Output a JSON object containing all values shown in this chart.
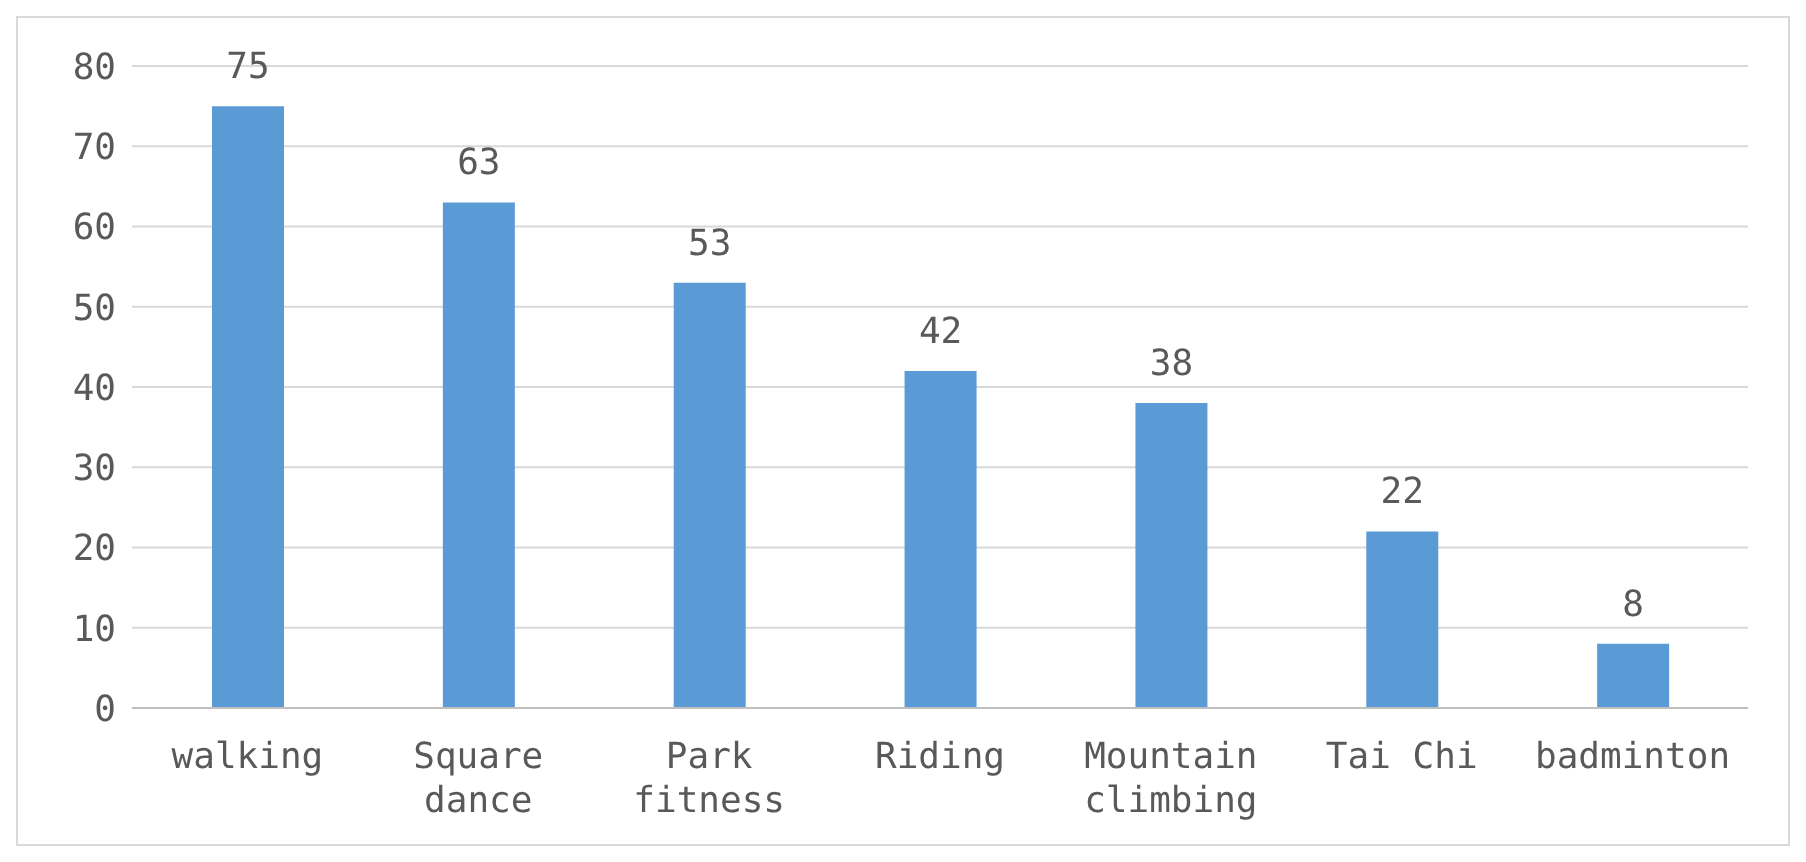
{
  "chart_data": {
    "type": "bar",
    "categories": [
      "walking",
      "Square dance",
      "Park fitness",
      "Riding",
      "Mountain climbing",
      "Tai Chi",
      "badminton"
    ],
    "values": [
      75,
      63,
      53,
      42,
      38,
      22,
      8
    ],
    "color": "#5b9bd5",
    "ylim": [
      0,
      80
    ],
    "yticks": [
      0,
      10,
      20,
      30,
      40,
      50,
      60,
      70,
      80
    ],
    "grid": "y",
    "data_labels": true
  }
}
